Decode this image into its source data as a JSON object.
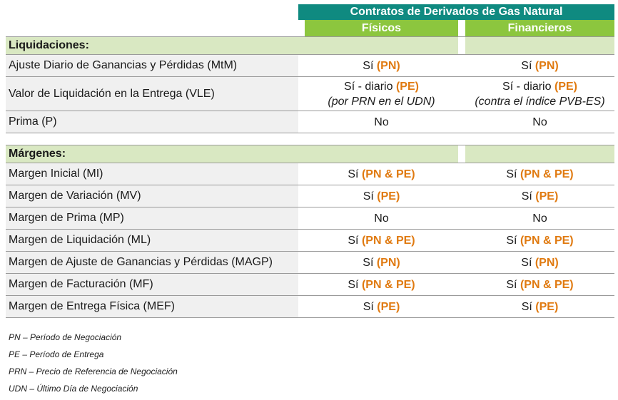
{
  "header": {
    "group": "Contratos de Derivados de Gas Natural",
    "col_fisicos": "Físicos",
    "col_financieros": "Financieros"
  },
  "sections": [
    {
      "title": "Liquidaciones:",
      "rows": [
        {
          "label": "Ajuste Diario de Ganancias y Pérdidas (MtM)",
          "fis": {
            "pre": "Sí ",
            "hl": "(PN)",
            "sub": ""
          },
          "fin": {
            "pre": "Sí ",
            "hl": "(PN)",
            "sub": ""
          }
        },
        {
          "label": "Valor de Liquidación en la Entrega (VLE)",
          "fis": {
            "pre": "Sí - diario ",
            "hl": "(PE)",
            "sub": "(por PRN en el UDN)"
          },
          "fin": {
            "pre": "Sí - diario ",
            "hl": "(PE)",
            "sub": "(contra el índice PVB-ES)"
          }
        },
        {
          "label": "Prima (P)",
          "fis": {
            "pre": "No",
            "hl": "",
            "sub": ""
          },
          "fin": {
            "pre": "No",
            "hl": "",
            "sub": ""
          }
        }
      ]
    },
    {
      "title": "Márgenes:",
      "rows": [
        {
          "label": "Margen Inicial (MI)",
          "fis": {
            "pre": "Sí ",
            "hl": "(PN & PE)",
            "sub": ""
          },
          "fin": {
            "pre": "Sí ",
            "hl": "(PN & PE)",
            "sub": ""
          }
        },
        {
          "label": "Margen de Variación (MV)",
          "fis": {
            "pre": "Sí ",
            "hl": "(PE)",
            "sub": ""
          },
          "fin": {
            "pre": "Sí ",
            "hl": "(PE)",
            "sub": ""
          }
        },
        {
          "label": "Margen de Prima (MP)",
          "fis": {
            "pre": "No",
            "hl": "",
            "sub": ""
          },
          "fin": {
            "pre": "No",
            "hl": "",
            "sub": ""
          }
        },
        {
          "label": "Margen de Liquidación (ML)",
          "fis": {
            "pre": "Sí ",
            "hl": "(PN & PE)",
            "sub": ""
          },
          "fin": {
            "pre": "Sí ",
            "hl": "(PN & PE)",
            "sub": ""
          }
        },
        {
          "label": "Margen de Ajuste de Ganancias y Pérdidas (MAGP)",
          "fis": {
            "pre": "Sí ",
            "hl": "(PN)",
            "sub": ""
          },
          "fin": {
            "pre": "Sí ",
            "hl": "(PN)",
            "sub": ""
          }
        },
        {
          "label": "Margen de Facturación (MF)",
          "fis": {
            "pre": "Sí ",
            "hl": "(PN & PE)",
            "sub": ""
          },
          "fin": {
            "pre": "Sí ",
            "hl": "(PN & PE)",
            "sub": ""
          }
        },
        {
          "label": "Margen de Entrega Física (MEF)",
          "fis": {
            "pre": "Sí ",
            "hl": "(PE)",
            "sub": ""
          },
          "fin": {
            "pre": "Sí ",
            "hl": "(PE)",
            "sub": ""
          }
        }
      ]
    }
  ],
  "notes": [
    "PN – Período de Negociación",
    "PE – Período de Entrega",
    "PRN – Precio de Referencia de Negociación",
    "UDN – Último Día de Negociación"
  ],
  "colors": {
    "teal": "#0f8a80",
    "green": "#8cc63e",
    "section_bg": "#d9e8c2",
    "highlight": "#e07a10"
  }
}
